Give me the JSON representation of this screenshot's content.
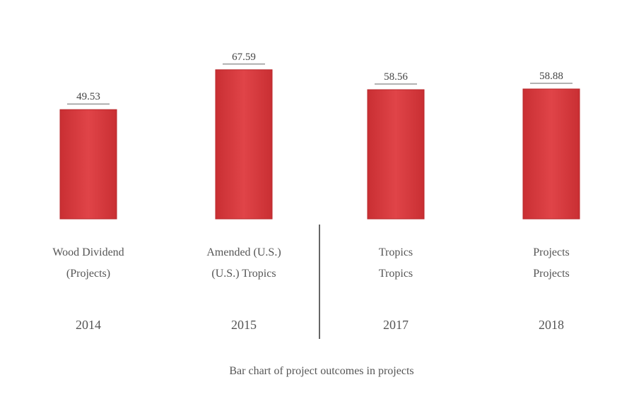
{
  "chart_data": {
    "type": "bar",
    "title": "",
    "xlabel": "",
    "ylabel": "",
    "ylim": [
      0,
      80
    ],
    "grid": false,
    "categories": [
      "Wood Dividend (Projects)",
      "Amended (U.S.) Tropics",
      "Tropics",
      "Projects"
    ],
    "category_lines": [
      [
        "Wood Dividend",
        "(Projects)"
      ],
      [
        "Amended (U.S.)",
        "(U.S.) Tropics"
      ],
      [
        "Tropics",
        "Tropics"
      ],
      [
        "Projects",
        "Projects"
      ]
    ],
    "years": [
      "2014",
      "2015",
      "2017",
      "2018"
    ],
    "values": [
      49.53,
      67.59,
      58.56,
      58.88
    ],
    "value_labels": [
      "49.53",
      "67.59",
      "58.56",
      "58.88"
    ],
    "footer": "Bar chart of project outcomes in projects",
    "colors": {
      "bar_fill": "#d8383c",
      "bar_stroke": "#b8282c",
      "divider": "#666666"
    }
  }
}
